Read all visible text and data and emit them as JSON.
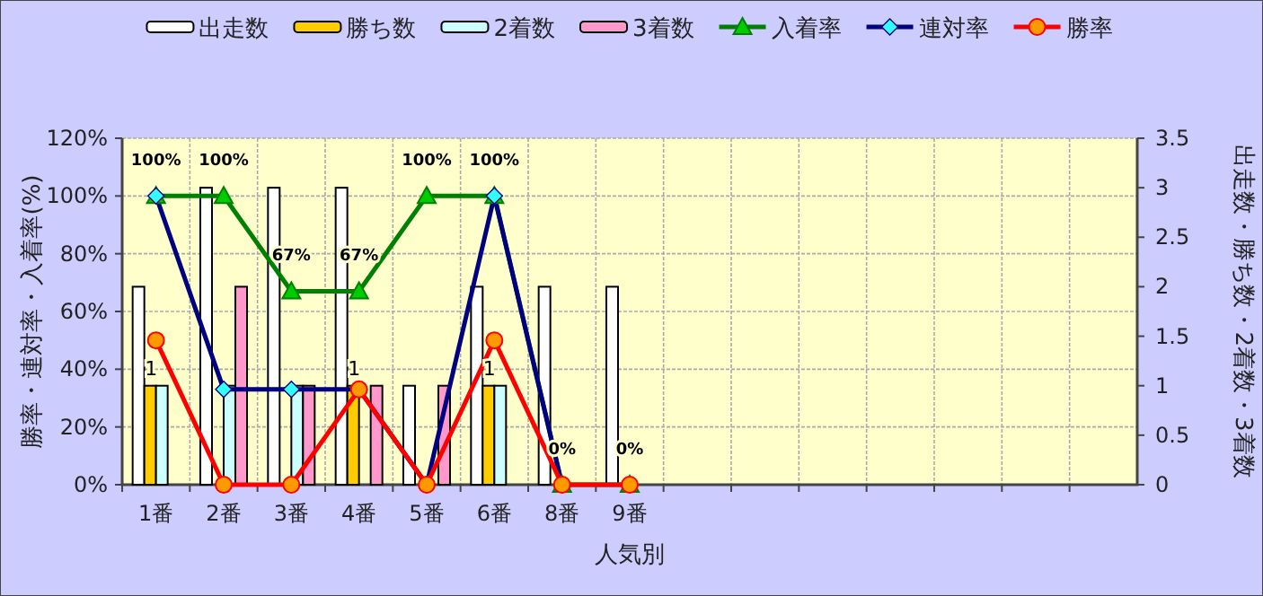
{
  "chart_data": {
    "type": "bar",
    "categories": [
      "1番",
      "2番",
      "3番",
      "4番",
      "5番",
      "6番",
      "8番",
      "9番",
      null,
      null,
      null,
      null,
      null,
      null,
      null
    ],
    "xlabel": "人気別",
    "ylabel": "勝率・連対率・入着率(%)",
    "y2label": "出走数・勝ち数・2着数・3着数",
    "ylim": [
      0,
      120
    ],
    "yticks": [
      {
        "value": 0,
        "label": "0%"
      },
      {
        "value": 20,
        "label": "20%"
      },
      {
        "value": 40,
        "label": "40%"
      },
      {
        "value": 60,
        "label": "60%"
      },
      {
        "value": 80,
        "label": "80%"
      },
      {
        "value": 100,
        "label": "100%"
      },
      {
        "value": 120,
        "label": "120%"
      }
    ],
    "y2lim": [
      0,
      3.5
    ],
    "y2ticks": [
      0,
      0.5,
      1,
      1.5,
      2,
      2.5,
      3,
      3.5
    ],
    "grid": true,
    "legend": "top",
    "series": [
      {
        "name": "出走数",
        "axis": "y2",
        "color": "#ffffff",
        "values": [
          2,
          3,
          3,
          3,
          1,
          2,
          2,
          2,
          null,
          null,
          null,
          null,
          null,
          null,
          null
        ]
      },
      {
        "name": "勝ち数",
        "axis": "y2",
        "color": "#ffcc00",
        "values": [
          1,
          0,
          0,
          1,
          0,
          1,
          0,
          0,
          null,
          null,
          null,
          null,
          null,
          null,
          null
        ],
        "value_labels": [
          "1",
          null,
          null,
          "1",
          null,
          "1",
          null,
          null,
          null,
          null,
          null,
          null,
          null,
          null,
          null
        ]
      },
      {
        "name": "2着数",
        "axis": "y2",
        "color": "#ccffff",
        "values": [
          1,
          1,
          1,
          0,
          0,
          1,
          0,
          0,
          null,
          null,
          null,
          null,
          null,
          null,
          null
        ]
      },
      {
        "name": "3着数",
        "axis": "y2",
        "color": "#ff99cc",
        "values": [
          0,
          2,
          1,
          1,
          1,
          0,
          0,
          0,
          null,
          null,
          null,
          null,
          null,
          null,
          null
        ]
      },
      {
        "name": "入着率",
        "type": "line",
        "color": "#008000",
        "marker": "triangle",
        "values": [
          100,
          100,
          67,
          67,
          100,
          100,
          0,
          0,
          null,
          null,
          null,
          null,
          null,
          null,
          null
        ],
        "value_labels": [
          "100%",
          "100%",
          "67%",
          "67%",
          "100%",
          "100%",
          "0%",
          "0%",
          null,
          null,
          null,
          null,
          null,
          null,
          null
        ]
      },
      {
        "name": "連対率",
        "type": "line",
        "color": "#000080",
        "marker": "diamond",
        "values": [
          100,
          33,
          33,
          33,
          0,
          100,
          0,
          null,
          null,
          null,
          null,
          null,
          null,
          null,
          null
        ]
      },
      {
        "name": "勝率",
        "type": "line",
        "color": "#ff0000",
        "marker": "circle",
        "values": [
          50,
          0,
          0,
          33,
          0,
          50,
          0,
          0,
          null,
          null,
          null,
          null,
          null,
          null,
          null
        ]
      }
    ]
  }
}
